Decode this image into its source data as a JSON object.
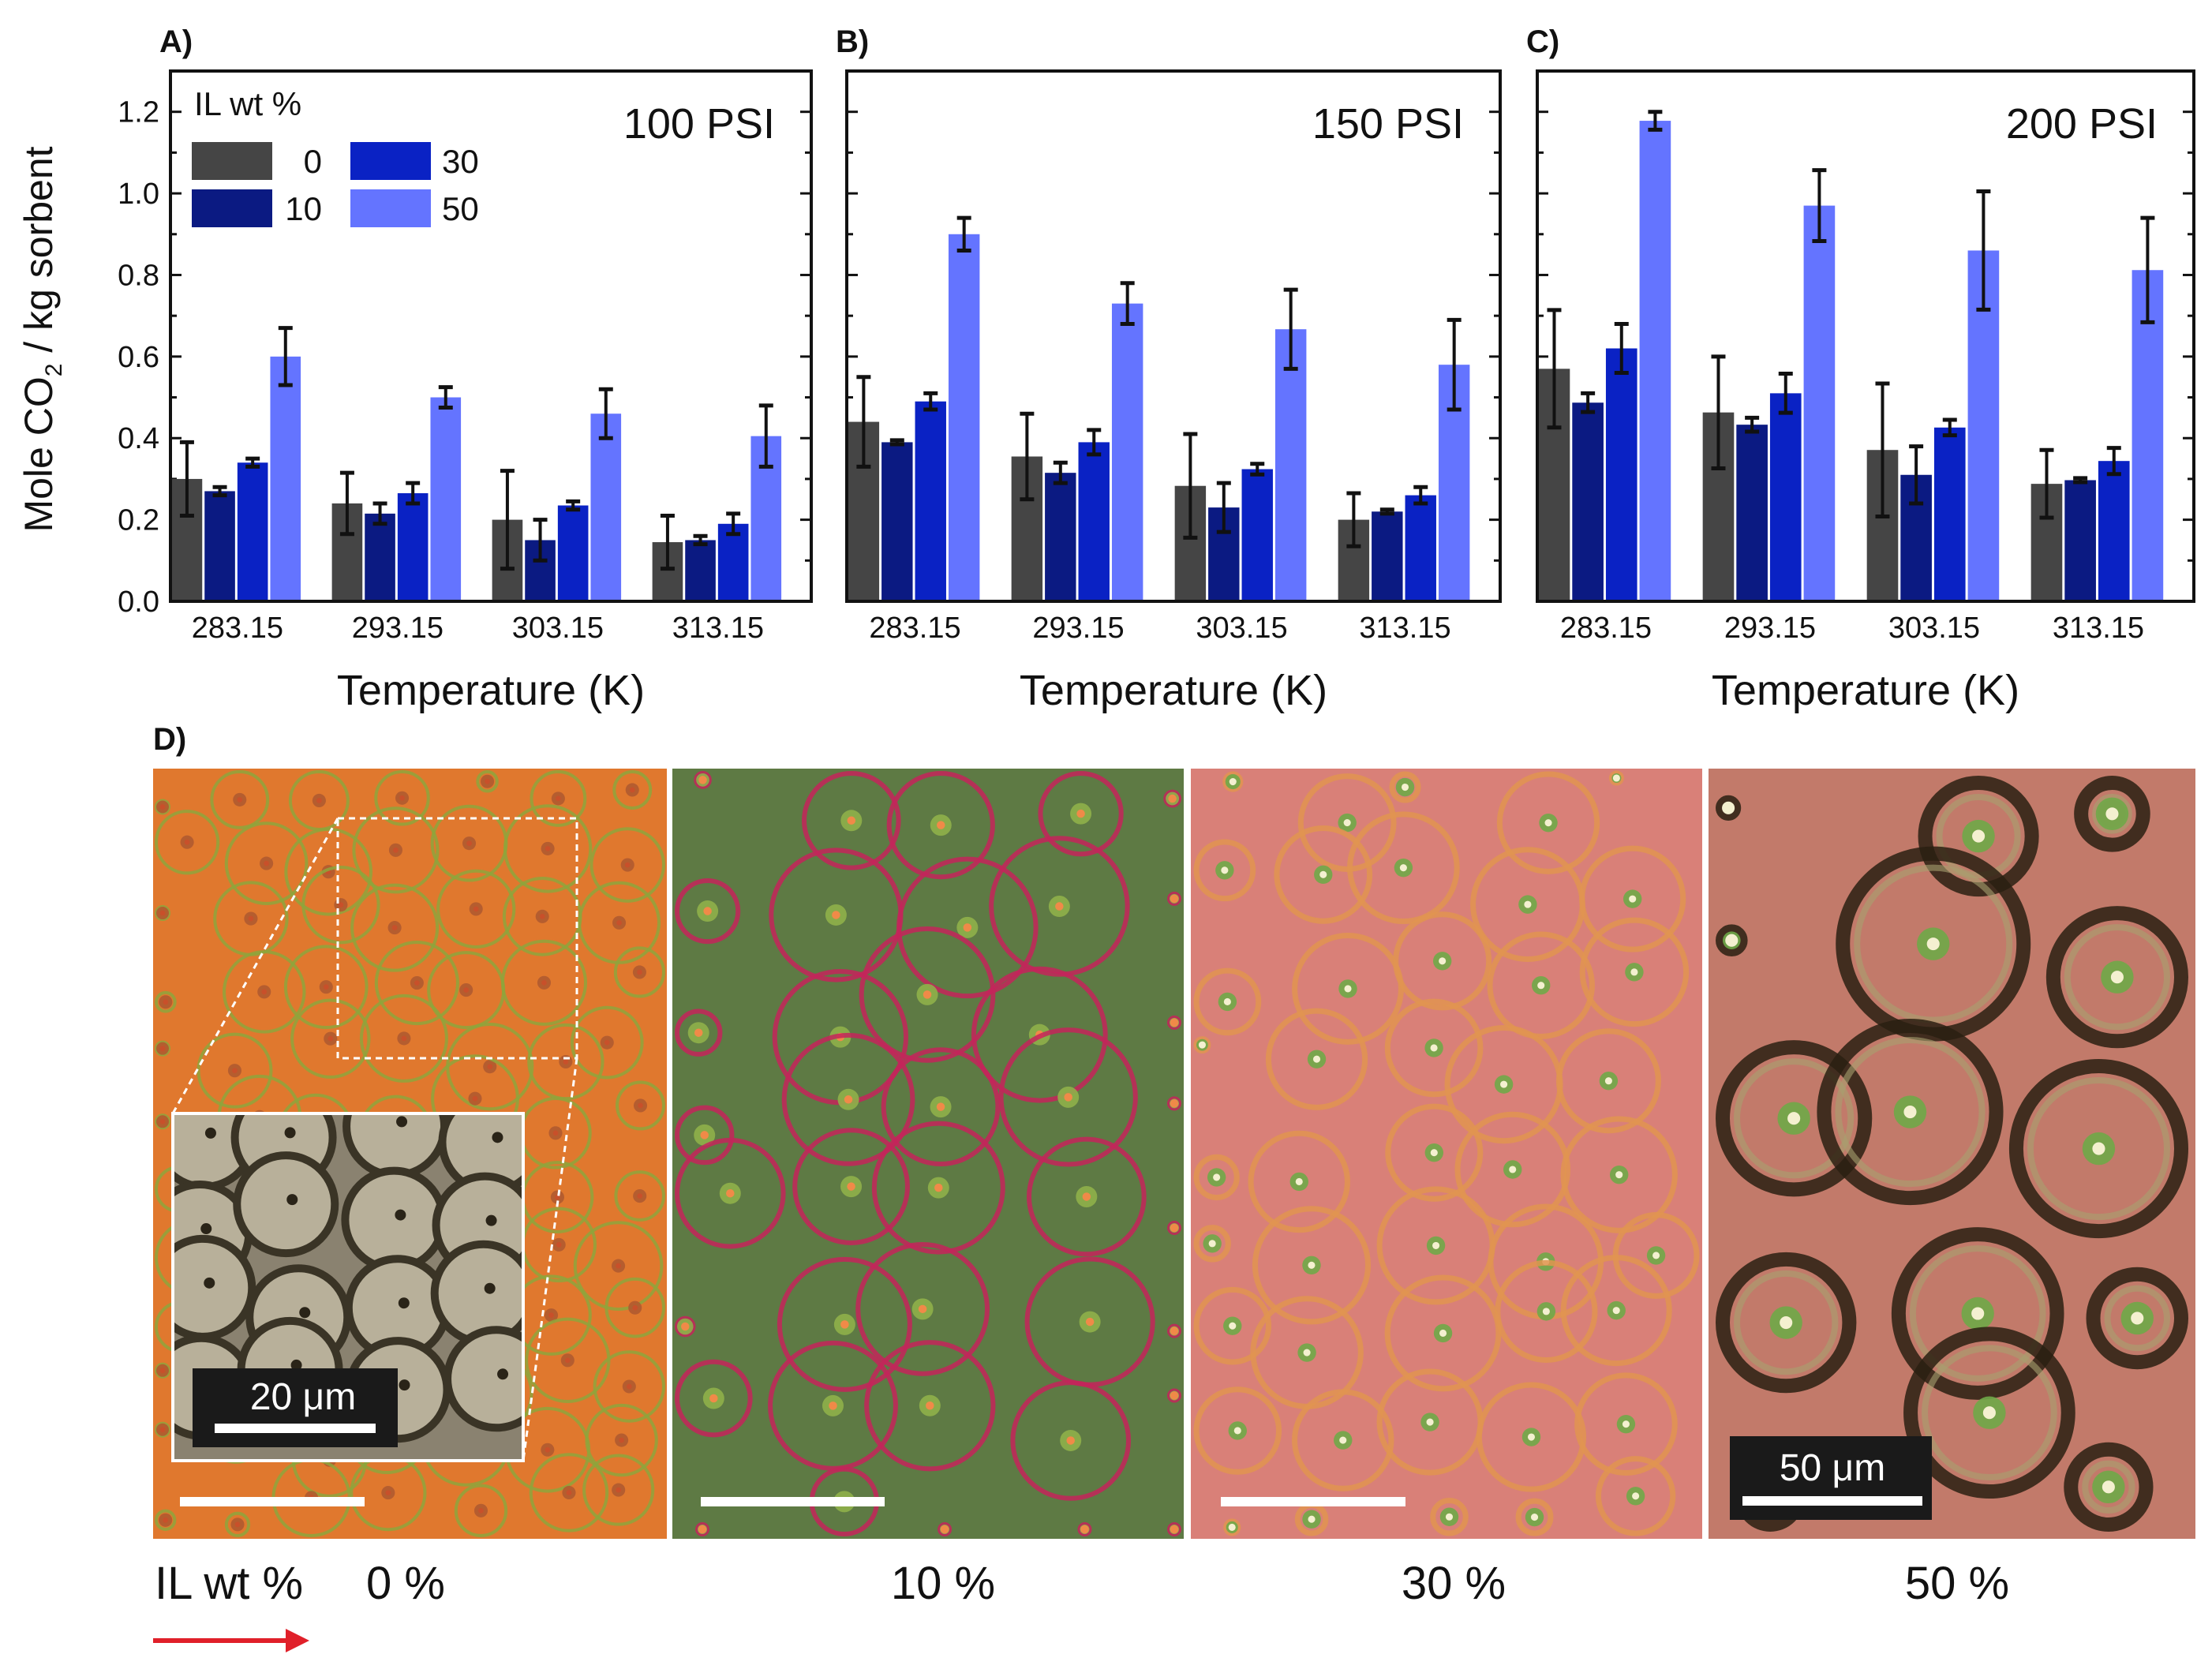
{
  "colors": {
    "s0": "#454545",
    "s10": "#0b1a82",
    "s30": "#0a22c4",
    "s50": "#6474ff",
    "arrow": "#e0202a"
  },
  "shared": {
    "ylabel_main": "Mole CO",
    "ylabel_sub": "2",
    "ylabel_rest": " / kg sorbent",
    "xlabel": "Temperature (K)",
    "legend_title": "IL wt %",
    "yticks": [
      "0.0",
      "0.2",
      "0.4",
      "0.6",
      "0.8",
      "1.0",
      "1.2"
    ]
  },
  "chart_data": [
    {
      "type": "bar",
      "panel": "A)",
      "title": "100 PSI",
      "xlabel": "Temperature (K)",
      "ylabel": "Mole CO2 / kg sorbent",
      "ylim": [
        0,
        1.3
      ],
      "categories": [
        "283.15",
        "293.15",
        "303.15",
        "313.15"
      ],
      "legend": {
        "title": "IL wt %",
        "placement": "top-left"
      },
      "series": [
        {
          "name": "0",
          "values": [
            0.3,
            0.24,
            0.2,
            0.145
          ],
          "errors": [
            0.09,
            0.075,
            0.12,
            0.065
          ]
        },
        {
          "name": "10",
          "values": [
            0.27,
            0.215,
            0.15,
            0.15
          ],
          "errors": [
            0.01,
            0.025,
            0.05,
            0.01
          ]
        },
        {
          "name": "30",
          "values": [
            0.34,
            0.265,
            0.235,
            0.19
          ],
          "errors": [
            0.01,
            0.025,
            0.01,
            0.025
          ]
        },
        {
          "name": "50",
          "values": [
            0.6,
            0.5,
            0.46,
            0.405
          ],
          "errors": [
            0.07,
            0.025,
            0.06,
            0.075
          ]
        }
      ]
    },
    {
      "type": "bar",
      "panel": "B)",
      "title": "150 PSI",
      "xlabel": "Temperature (K)",
      "ylabel": "Mole CO2 / kg sorbent",
      "ylim": [
        0,
        1.3
      ],
      "categories": [
        "283.15",
        "293.15",
        "303.15",
        "313.15"
      ],
      "series": [
        {
          "name": "0",
          "values": [
            0.44,
            0.355,
            0.283,
            0.2
          ],
          "errors": [
            0.11,
            0.105,
            0.127,
            0.065
          ]
        },
        {
          "name": "10",
          "values": [
            0.39,
            0.315,
            0.23,
            0.22
          ],
          "errors": [
            0.005,
            0.025,
            0.06,
            0.005
          ]
        },
        {
          "name": "30",
          "values": [
            0.49,
            0.39,
            0.324,
            0.26
          ],
          "errors": [
            0.02,
            0.03,
            0.013,
            0.02
          ]
        },
        {
          "name": "50",
          "values": [
            0.9,
            0.73,
            0.667,
            0.58
          ],
          "errors": [
            0.04,
            0.05,
            0.097,
            0.11
          ]
        }
      ]
    },
    {
      "type": "bar",
      "panel": "C)",
      "title": "200 PSI",
      "xlabel": "Temperature (K)",
      "ylabel": "Mole CO2 / kg sorbent",
      "ylim": [
        0,
        1.3
      ],
      "categories": [
        "283.15",
        "293.15",
        "303.15",
        "313.15"
      ],
      "series": [
        {
          "name": "0",
          "values": [
            0.57,
            0.463,
            0.371,
            0.288
          ],
          "errors": [
            0.144,
            0.137,
            0.163,
            0.083
          ]
        },
        {
          "name": "10",
          "values": [
            0.487,
            0.433,
            0.31,
            0.297
          ],
          "errors": [
            0.023,
            0.017,
            0.07,
            0.005
          ]
        },
        {
          "name": "30",
          "values": [
            0.62,
            0.51,
            0.426,
            0.344
          ],
          "errors": [
            0.06,
            0.048,
            0.019,
            0.032
          ]
        },
        {
          "name": "50",
          "values": [
            1.178,
            0.97,
            0.86,
            0.812
          ],
          "errors": [
            0.022,
            0.087,
            0.145,
            0.128
          ]
        }
      ]
    }
  ],
  "micrographs": {
    "panel": "D)",
    "row_label": "IL wt %",
    "labels": [
      "0 %",
      "10 %",
      "30 %",
      "50 %"
    ],
    "inset_scale": "20 μm",
    "scale_50": "50 μm"
  }
}
